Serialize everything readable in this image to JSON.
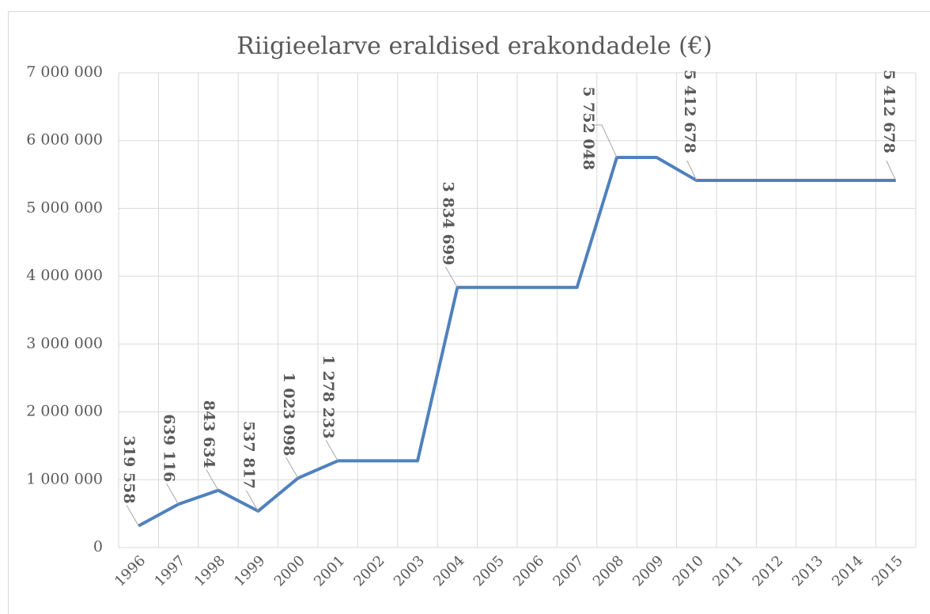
{
  "chart_data": {
    "type": "line",
    "title": "Riigieelarve eraldised erakondadele (€)",
    "categories": [
      "1996",
      "1997",
      "1998",
      "1999",
      "2000",
      "2001",
      "2002",
      "2003",
      "2004",
      "2005",
      "2006",
      "2007",
      "2008",
      "2009",
      "2010",
      "2011",
      "2012",
      "2013",
      "2014",
      "2015"
    ],
    "series": [
      {
        "name": "Riigieelarve eraldised",
        "color": "#4f81bd",
        "values": [
          319558,
          639116,
          843634,
          537817,
          1023098,
          1278233,
          1278233,
          1278233,
          3834699,
          3834699,
          3834699,
          3834699,
          5752048,
          5752048,
          5412678,
          5412678,
          5412678,
          5412678,
          5412678,
          5412678
        ],
        "value_labels": [
          "319 558",
          "639 116",
          "843 634",
          "537 817",
          "1 023 098",
          "1 278 233",
          null,
          null,
          "3 834 699",
          null,
          null,
          null,
          "5 752 048",
          null,
          "5 412 678",
          null,
          null,
          null,
          null,
          "5 412 678"
        ]
      }
    ],
    "ylim": [
      0,
      7000000
    ],
    "yticks": [
      0,
      {
        "value": 1000000,
        "label": "1 000 000"
      },
      {
        "value": 2000000,
        "label": "2 000 000"
      },
      {
        "value": 3000000,
        "label": "3 000 000"
      },
      {
        "value": 4000000,
        "label": "4 000 000"
      },
      {
        "value": 5000000,
        "label": "5 000 000"
      },
      {
        "value": 6000000,
        "label": "6 000 000"
      },
      {
        "value": 7000000,
        "label": "7 000 000"
      }
    ],
    "grid": true
  }
}
